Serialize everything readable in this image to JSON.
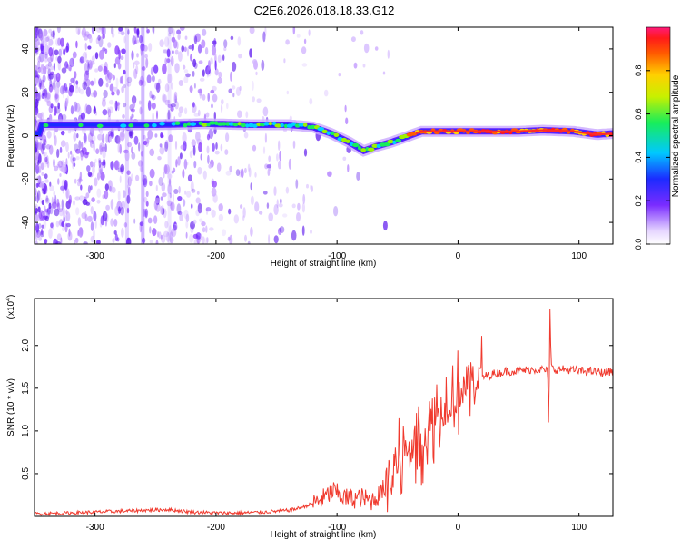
{
  "figure_title": "C2E6.2026.018.18.33.G12",
  "chart_data": [
    {
      "type": "heatmap",
      "xlabel": "Height of straight line (km)",
      "ylabel": "Frequency (Hz)",
      "xlim": [
        -350,
        128
      ],
      "ylim": [
        -50,
        50
      ],
      "x_ticks": [
        -300,
        -200,
        -100,
        0,
        100
      ],
      "y_ticks": [
        -40,
        -20,
        0,
        20,
        40
      ],
      "colorbar": {
        "label": "Normalized spectral amplitude",
        "range": [
          0,
          1
        ],
        "ticks": [
          0.0,
          0.2,
          0.4,
          0.6,
          0.8
        ]
      },
      "ridge": {
        "description_points": [
          {
            "x": -345,
            "y": 5
          },
          {
            "x": -300,
            "y": 5
          },
          {
            "x": -250,
            "y": 5
          },
          {
            "x": -210,
            "y": 5.5
          },
          {
            "x": -170,
            "y": 5
          },
          {
            "x": -140,
            "y": 5
          },
          {
            "x": -120,
            "y": 4
          },
          {
            "x": -105,
            "y": 1
          },
          {
            "x": -90,
            "y": -3
          },
          {
            "x": -78,
            "y": -7
          },
          {
            "x": -68,
            "y": -5
          },
          {
            "x": -55,
            "y": -3
          },
          {
            "x": -40,
            "y": 0
          },
          {
            "x": -30,
            "y": 2
          },
          {
            "x": -10,
            "y": 2
          },
          {
            "x": 20,
            "y": 2
          },
          {
            "x": 50,
            "y": 2
          },
          {
            "x": 70,
            "y": 2.5
          },
          {
            "x": 95,
            "y": 2
          },
          {
            "x": 115,
            "y": 0.5
          },
          {
            "x": 128,
            "y": 1
          }
        ]
      }
    },
    {
      "type": "line",
      "xlabel": "Height of straight line (km)",
      "ylabel": "SNR (10 * v/v)",
      "y_scale_label": "(x10",
      "y_scale_exponent": "4",
      "y_scale_close": ")",
      "xlim": [
        -350,
        128
      ],
      "ylim": [
        0,
        2.55
      ],
      "x_ticks": [
        -300,
        -200,
        -100,
        0,
        100
      ],
      "y_ticks": [
        0.5,
        1.0,
        1.5,
        2.0
      ],
      "color": "#f03a2e",
      "series": [
        {
          "name": "SNR",
          "x": [
            -350,
            -320,
            -300,
            -280,
            -260,
            -240,
            -220,
            -200,
            -180,
            -160,
            -140,
            -130,
            -120,
            -110,
            -103,
            -98,
            -90,
            -80,
            -72,
            -65,
            -60,
            -55,
            -50,
            -45,
            -40,
            -35,
            -30,
            -25,
            -20,
            -15,
            -10,
            -5,
            0,
            5,
            10,
            15,
            20,
            25,
            30,
            35,
            40,
            50,
            60,
            70,
            74,
            75,
            76,
            77,
            78,
            80,
            90,
            100,
            110,
            120,
            128
          ],
          "values": [
            0.03,
            0.04,
            0.05,
            0.06,
            0.07,
            0.08,
            0.05,
            0.04,
            0.04,
            0.05,
            0.07,
            0.1,
            0.15,
            0.22,
            0.3,
            0.25,
            0.2,
            0.22,
            0.18,
            0.25,
            0.35,
            0.45,
            0.6,
            0.7,
            0.8,
            0.85,
            0.9,
            1.0,
            1.15,
            1.25,
            1.3,
            1.38,
            1.45,
            1.52,
            1.58,
            1.6,
            1.63,
            1.65,
            1.67,
            1.68,
            1.7,
            1.7,
            1.72,
            1.72,
            1.7,
            1.0,
            2.4,
            1.75,
            1.73,
            1.72,
            1.72,
            1.7,
            1.7,
            1.68,
            1.7
          ]
        }
      ]
    }
  ]
}
